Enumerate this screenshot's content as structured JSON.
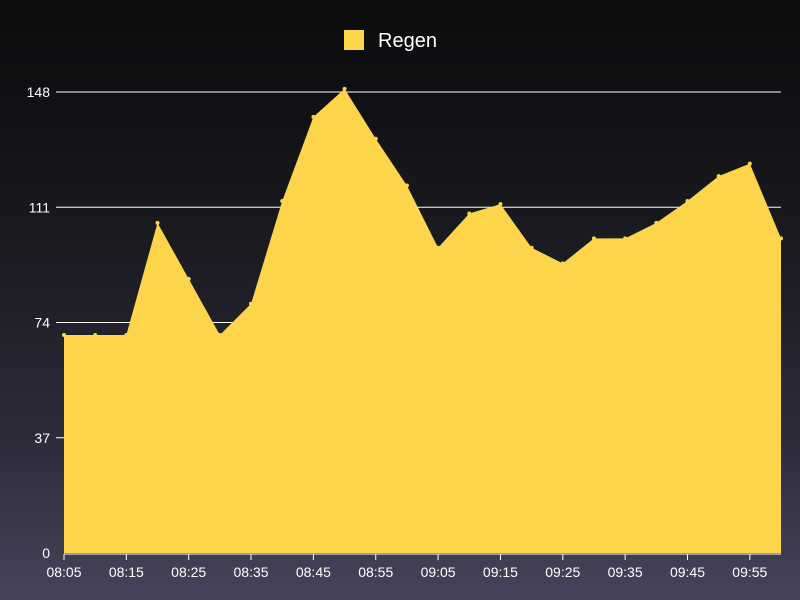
{
  "chart_data": {
    "type": "area",
    "x": [
      "08:05",
      "08:10",
      "08:15",
      "08:20",
      "08:25",
      "08:30",
      "08:35",
      "08:40",
      "08:45",
      "08:50",
      "08:55",
      "09:00",
      "09:05",
      "09:10",
      "09:15",
      "09:20",
      "09:25",
      "09:30",
      "09:35",
      "09:40",
      "09:45",
      "09:50",
      "09:55",
      "10:00"
    ],
    "x_tick_labels": [
      "08:05",
      "08:15",
      "08:25",
      "08:35",
      "08:45",
      "08:55",
      "09:05",
      "09:15",
      "09:25",
      "09:35",
      "09:45",
      "09:55"
    ],
    "y_ticks": [
      0,
      37,
      74,
      111,
      148
    ],
    "ylim": [
      0,
      148
    ],
    "grid": true,
    "legend_position": "top-center",
    "series": [
      {
        "name": "Regen",
        "color": "#fdd54b",
        "values": [
          70,
          70,
          70,
          106,
          88,
          70,
          80,
          113,
          140,
          149,
          133,
          118,
          98,
          109,
          112,
          98,
          93,
          101,
          101,
          106,
          113,
          121,
          125,
          101
        ]
      }
    ]
  }
}
